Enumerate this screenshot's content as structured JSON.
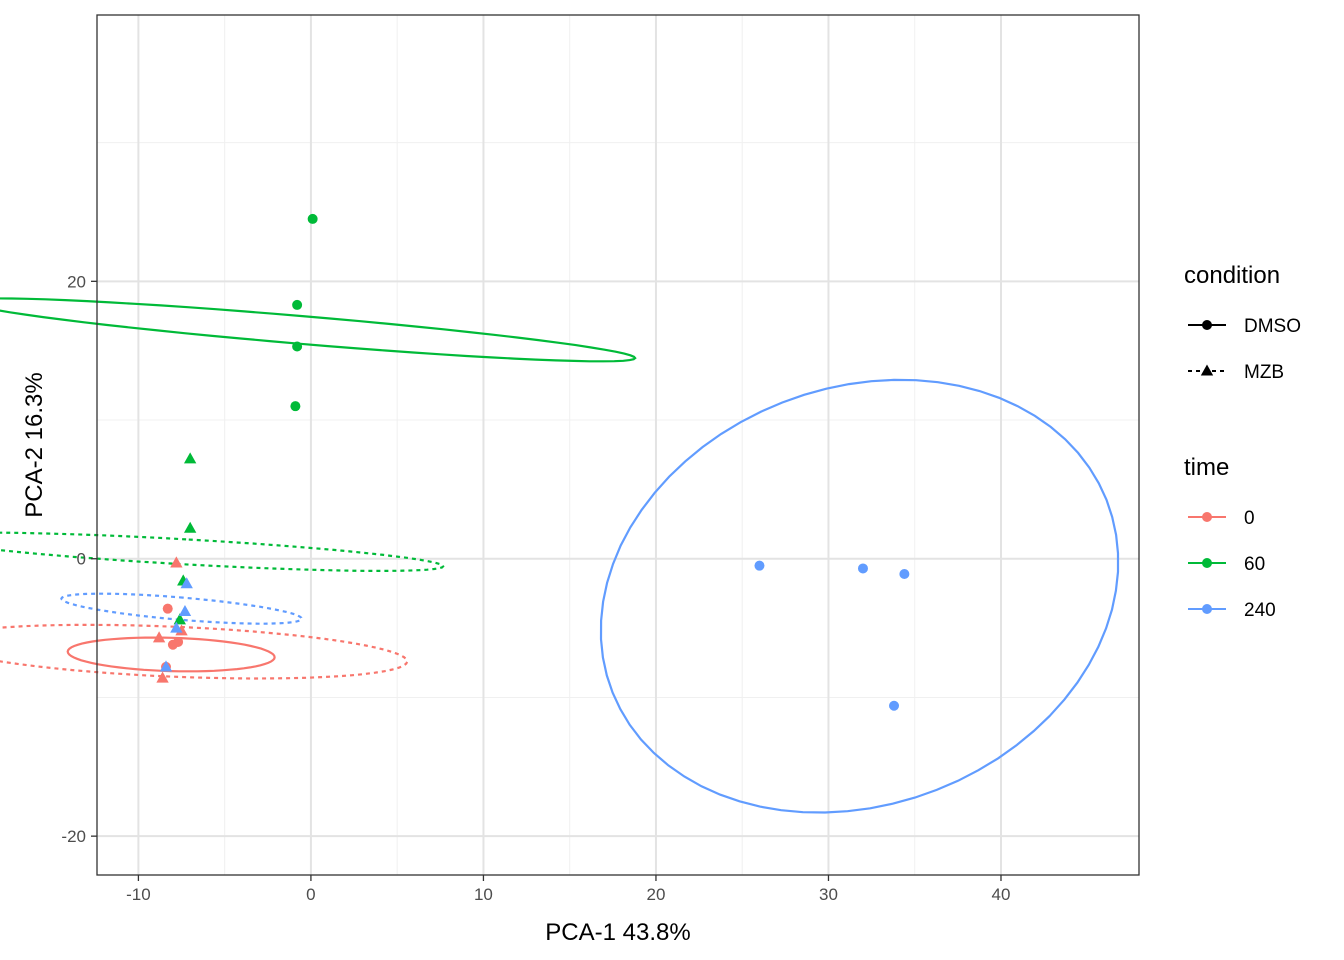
{
  "chart_data": {
    "type": "scatter",
    "xlabel": "PCA-1 43.8%",
    "ylabel": "PCA-2 16.3%",
    "xlim": [
      -12.4,
      48
    ],
    "ylim": [
      -22.8,
      39.2
    ],
    "x_ticks": [
      -10,
      0,
      10,
      20,
      30,
      40
    ],
    "x_tick_labels": [
      "-10",
      "0",
      "10",
      "20",
      "30",
      "40"
    ],
    "y_ticks": [
      -20,
      0,
      20
    ],
    "y_tick_labels": [
      "-20",
      "0",
      "20"
    ],
    "grid": true,
    "legend_position": "right",
    "legends": [
      {
        "title": "condition",
        "entries": [
          {
            "label": "DMSO",
            "shape": "circle",
            "linetype": "solid"
          },
          {
            "label": "MZB",
            "shape": "triangle",
            "linetype": "dashed"
          }
        ]
      },
      {
        "title": "time",
        "entries": [
          {
            "label": "0",
            "color": "#F8766D"
          },
          {
            "label": "60",
            "color": "#00BA38"
          },
          {
            "label": "240",
            "color": "#619CFF"
          }
        ]
      }
    ],
    "series": [
      {
        "time": "0",
        "condition": "DMSO",
        "color": "#F8766D",
        "shape": "circle",
        "linetype": "solid",
        "points": [
          [
            -8.3,
            -3.6
          ],
          [
            -8.0,
            -6.2
          ],
          [
            -8.4,
            -7.8
          ],
          [
            -7.7,
            -6.0
          ]
        ],
        "ellipse": {
          "cx": -8.1,
          "cy": -6.9,
          "rx": 1.2,
          "ry": 6.0,
          "angle": 88
        }
      },
      {
        "time": "0",
        "condition": "MZB",
        "color": "#F8766D",
        "shape": "triangle",
        "linetype": "dashed",
        "points": [
          [
            -8.8,
            -5.7
          ],
          [
            -8.6,
            -8.6
          ],
          [
            -7.8,
            -0.3
          ],
          [
            -7.5,
            -5.2
          ]
        ],
        "ellipse": {
          "cx": -8.0,
          "cy": -6.7,
          "rx": 1.8,
          "ry": 13.6,
          "angle": 87
        }
      },
      {
        "time": "60",
        "condition": "DMSO",
        "color": "#00BA38",
        "shape": "circle",
        "linetype": "solid",
        "points": [
          [
            0.1,
            24.5
          ],
          [
            -0.8,
            18.3
          ],
          [
            -0.8,
            15.3
          ],
          [
            -0.9,
            11.0
          ]
        ],
        "ellipse": {
          "cx": -0.6,
          "cy": 16.5,
          "rx": 1.0,
          "ry": 19.5,
          "angle": 84
        }
      },
      {
        "time": "60",
        "condition": "MZB",
        "color": "#00BA38",
        "shape": "triangle",
        "linetype": "dashed",
        "points": [
          [
            -7.0,
            7.2
          ],
          [
            -7.0,
            2.2
          ],
          [
            -7.4,
            -1.6
          ],
          [
            -7.6,
            -4.4
          ]
        ],
        "ellipse": {
          "cx": -7.3,
          "cy": 0.5,
          "rx": 0.9,
          "ry": 15.0,
          "angle": 86
        }
      },
      {
        "time": "240",
        "condition": "DMSO",
        "color": "#619CFF",
        "shape": "circle",
        "linetype": "solid",
        "points": [
          [
            26.0,
            -0.5
          ],
          [
            32.0,
            -0.7
          ],
          [
            34.4,
            -1.1
          ],
          [
            33.8,
            -10.6
          ]
        ],
        "ellipse": {
          "cx": 31.8,
          "cy": -2.7,
          "rx": 14.0,
          "ry": 16.5,
          "angle": -38
        }
      },
      {
        "time": "240",
        "condition": "MZB",
        "color": "#619CFF",
        "shape": "triangle",
        "linetype": "dashed",
        "points": [
          [
            -7.8,
            -5.0
          ],
          [
            -7.3,
            -3.8
          ],
          [
            -7.2,
            -1.8
          ],
          [
            -8.4,
            -7.8
          ]
        ],
        "ellipse": {
          "cx": -7.5,
          "cy": -3.6,
          "rx": 0.8,
          "ry": 7.0,
          "angle": 84
        }
      }
    ]
  }
}
